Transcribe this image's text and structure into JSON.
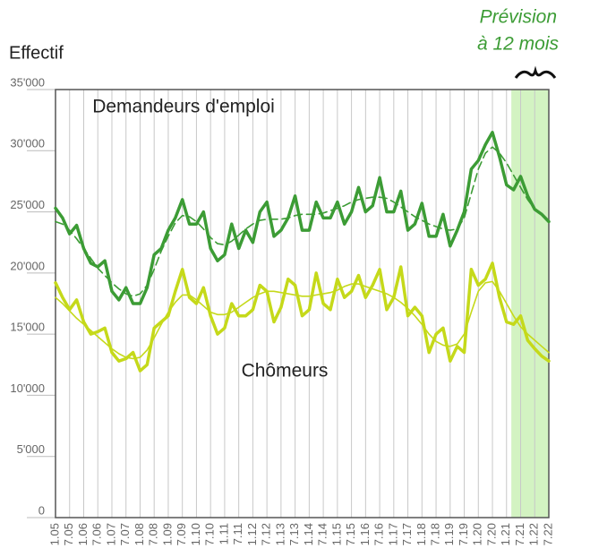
{
  "chart_data": {
    "type": "line",
    "ylabel": "Effectif",
    "forecast": {
      "start": 2021.17,
      "label": [
        "Prévision",
        "à 12 mois"
      ],
      "color": "#d3f3c2"
    },
    "x": [
      2005,
      2005.25,
      2005.5,
      2005.75,
      2006,
      2006.25,
      2006.5,
      2006.75,
      2007,
      2007.25,
      2007.5,
      2007.75,
      2008,
      2008.25,
      2008.5,
      2008.75,
      2009,
      2009.25,
      2009.5,
      2009.75,
      2010,
      2010.25,
      2010.5,
      2010.75,
      2011,
      2011.25,
      2011.5,
      2011.75,
      2012,
      2012.25,
      2012.5,
      2012.75,
      2013,
      2013.25,
      2013.5,
      2013.75,
      2014,
      2014.25,
      2014.5,
      2014.75,
      2015,
      2015.25,
      2015.5,
      2015.75,
      2016,
      2016.25,
      2016.5,
      2016.75,
      2017,
      2017.25,
      2017.5,
      2017.75,
      2018,
      2018.25,
      2018.5,
      2018.75,
      2019,
      2019.25,
      2019.5,
      2019.75,
      2020,
      2020.25,
      2020.5,
      2020.75,
      2021,
      2021.25,
      2021.5,
      2021.75,
      2022,
      2022.25,
      2022.5
    ],
    "series": [
      {
        "name": "Demandeurs d'emploi",
        "color": "#3c9c35",
        "width": 3.5,
        "dash": false,
        "values": [
          25300,
          24500,
          23200,
          23900,
          22000,
          20800,
          20500,
          21000,
          18500,
          17800,
          18800,
          17500,
          17500,
          18800,
          21500,
          22000,
          23500,
          24500,
          26000,
          24000,
          24000,
          25000,
          22000,
          21000,
          21500,
          24000,
          22000,
          23500,
          22500,
          25000,
          25800,
          23000,
          23500,
          24500,
          26300,
          23500,
          23500,
          25800,
          24500,
          24500,
          25800,
          24000,
          25000,
          27000,
          25000,
          25500,
          27800,
          25000,
          25000,
          26700,
          23500,
          24000,
          25700,
          23000,
          23000,
          24800,
          22200,
          23500,
          25000,
          28500,
          29200,
          30500,
          31500,
          29500,
          27200,
          26800,
          27900,
          26300,
          25200,
          24800,
          24200
        ]
      },
      {
        "color": "#3c9c35",
        "width": 1.6,
        "dash": true,
        "values": [
          24200,
          24000,
          23500,
          22800,
          22000,
          21200,
          20400,
          19800,
          19200,
          18700,
          18300,
          18100,
          18300,
          19000,
          20300,
          21800,
          23000,
          24100,
          24700,
          24600,
          24200,
          23600,
          22900,
          22400,
          22300,
          22600,
          23100,
          23600,
          24000,
          24300,
          24400,
          24400,
          24400,
          24500,
          24700,
          24800,
          24800,
          24800,
          24900,
          25100,
          25300,
          25500,
          25800,
          26000,
          26100,
          26200,
          26200,
          26100,
          25800,
          25400,
          25000,
          24600,
          24300,
          24000,
          23800,
          23600,
          23500,
          23600,
          24500,
          26500,
          28500,
          29800,
          30300,
          29800,
          29000,
          28000,
          27000,
          26000,
          25200,
          24800,
          24200
        ]
      },
      {
        "name": "Chômeurs",
        "color": "#c5d91a",
        "width": 3.5,
        "dash": false,
        "values": [
          19200,
          18000,
          17000,
          17800,
          16000,
          15000,
          15200,
          15500,
          13500,
          12800,
          13000,
          13500,
          12000,
          12500,
          15500,
          16000,
          16500,
          18500,
          20300,
          18000,
          17500,
          18800,
          16500,
          15000,
          15500,
          17500,
          16500,
          16500,
          17000,
          19000,
          18500,
          16000,
          17200,
          19500,
          19000,
          16500,
          17000,
          20000,
          17500,
          17000,
          19500,
          18000,
          18500,
          19800,
          18000,
          19000,
          20300,
          17000,
          18000,
          20500,
          16500,
          17200,
          16500,
          13500,
          15000,
          15500,
          12800,
          14000,
          13500,
          20300,
          19000,
          19500,
          20800,
          18000,
          16000,
          15800,
          16500,
          14500,
          13800,
          13200,
          12800
        ]
      },
      {
        "color": "#c5d91a",
        "width": 1.6,
        "dash": false,
        "values": [
          18000,
          17500,
          16900,
          16300,
          15800,
          15300,
          14800,
          14300,
          13800,
          13400,
          13100,
          13000,
          13100,
          13700,
          14700,
          15800,
          16800,
          17600,
          18200,
          18200,
          17800,
          17300,
          16800,
          16600,
          16600,
          16800,
          17200,
          17600,
          18000,
          18300,
          18500,
          18500,
          18400,
          18300,
          18200,
          18100,
          18100,
          18200,
          18300,
          18400,
          18600,
          18900,
          19100,
          19100,
          18900,
          18700,
          18500,
          18300,
          18000,
          17600,
          17100,
          16500,
          15800,
          15000,
          14400,
          14100,
          14000,
          14200,
          15000,
          16800,
          18500,
          19200,
          19300,
          18500,
          17500,
          16500,
          15600,
          15000,
          14500,
          14000,
          13500
        ]
      }
    ],
    "xlim": [
      2005,
      2022.5
    ],
    "xticks": [
      {
        "value": 2005,
        "label": "1.05"
      },
      {
        "value": 2005.5,
        "label": "7.05"
      },
      {
        "value": 2006,
        "label": "1.06"
      },
      {
        "value": 2006.5,
        "label": "7.06"
      },
      {
        "value": 2007,
        "label": "1.07"
      },
      {
        "value": 2007.5,
        "label": "7.07"
      },
      {
        "value": 2008,
        "label": "1.08"
      },
      {
        "value": 2008.5,
        "label": "7.08"
      },
      {
        "value": 2009,
        "label": "1.09"
      },
      {
        "value": 2009.5,
        "label": "7.09"
      },
      {
        "value": 2010,
        "label": "1.10"
      },
      {
        "value": 2010.5,
        "label": "7.10"
      },
      {
        "value": 2011,
        "label": "1.11"
      },
      {
        "value": 2011.5,
        "label": "7.11"
      },
      {
        "value": 2012,
        "label": "1.12"
      },
      {
        "value": 2012.5,
        "label": "7.12"
      },
      {
        "value": 2013,
        "label": "1.13"
      },
      {
        "value": 2013.5,
        "label": "7.13"
      },
      {
        "value": 2014,
        "label": "1.14"
      },
      {
        "value": 2014.5,
        "label": "7.14"
      },
      {
        "value": 2015,
        "label": "1.15"
      },
      {
        "value": 2015.5,
        "label": "7.15"
      },
      {
        "value": 2016,
        "label": "1.16"
      },
      {
        "value": 2016.5,
        "label": "7.16"
      },
      {
        "value": 2017,
        "label": "1.17"
      },
      {
        "value": 2017.5,
        "label": "7.17"
      },
      {
        "value": 2018,
        "label": "1.18"
      },
      {
        "value": 2018.5,
        "label": "7.18"
      },
      {
        "value": 2019,
        "label": "1.19"
      },
      {
        "value": 2019.5,
        "label": "7.19"
      },
      {
        "value": 2020,
        "label": "1.20"
      },
      {
        "value": 2020.5,
        "label": "7.20"
      },
      {
        "value": 2021,
        "label": "1.21"
      },
      {
        "value": 2021.5,
        "label": "7.21"
      },
      {
        "value": 2022,
        "label": "1.22"
      },
      {
        "value": 2022.5,
        "label": "7.22"
      }
    ],
    "ylim": [
      0,
      35000
    ],
    "yticks": [
      0,
      {
        "value": 5000,
        "label": "5'000"
      },
      {
        "value": 10000,
        "label": "10'000"
      },
      {
        "value": 15000,
        "label": "15'000"
      },
      {
        "value": 20000,
        "label": "20'000"
      },
      {
        "value": 25000,
        "label": "25'000"
      },
      {
        "value": 30000,
        "label": "30'000"
      },
      {
        "value": 35000,
        "label": "35'000"
      }
    ],
    "grid": true
  }
}
